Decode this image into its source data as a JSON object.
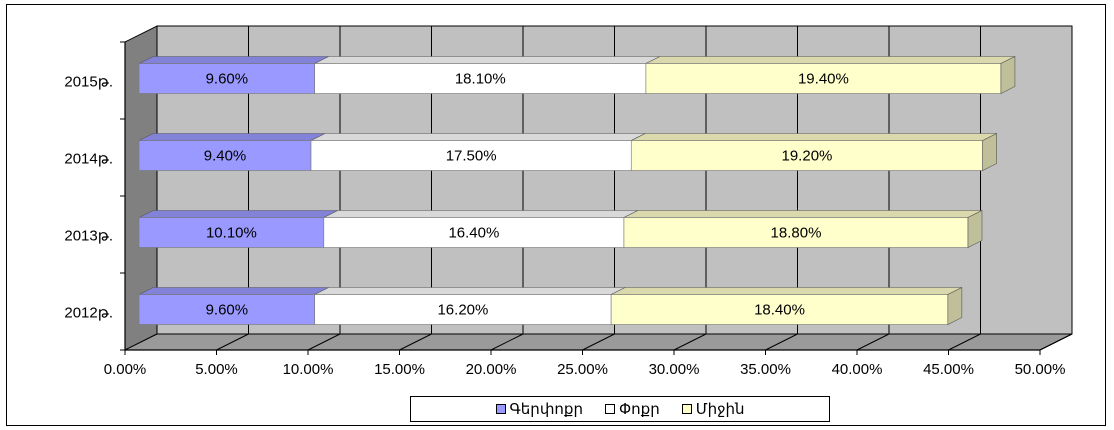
{
  "chart_data": {
    "type": "bar",
    "orientation": "horizontal",
    "stacked": true,
    "categories": [
      "2012թ.",
      "2013թ.",
      "2014թ.",
      "2015թ."
    ],
    "series": [
      {
        "name": "Գերփոքր",
        "values": [
          9.6,
          10.1,
          9.4,
          9.6
        ],
        "labels": [
          "9.60%",
          "10.10%",
          "9.40%",
          "9.60%"
        ],
        "color": "#9999ff"
      },
      {
        "name": "Փոքր",
        "values": [
          16.2,
          16.4,
          17.5,
          18.1
        ],
        "labels": [
          "16.20%",
          "16.40%",
          "17.50%",
          "18.10%"
        ],
        "color": "#ffffff"
      },
      {
        "name": "Միջին",
        "values": [
          18.4,
          18.8,
          19.2,
          19.4
        ],
        "labels": [
          "18.40%",
          "18.80%",
          "19.20%",
          "19.40%"
        ],
        "color": "#ffffcc"
      }
    ],
    "xticks": [
      "0.00%",
      "5.00%",
      "10.00%",
      "15.00%",
      "20.00%",
      "25.00%",
      "30.00%",
      "35.00%",
      "40.00%",
      "45.00%",
      "50.00%"
    ],
    "xlim": [
      0,
      50
    ],
    "title": "",
    "xlabel": "",
    "ylabel": "",
    "grid": true,
    "legend_position": "bottom",
    "plot_background": "#c0c0c0",
    "style": "3d"
  }
}
